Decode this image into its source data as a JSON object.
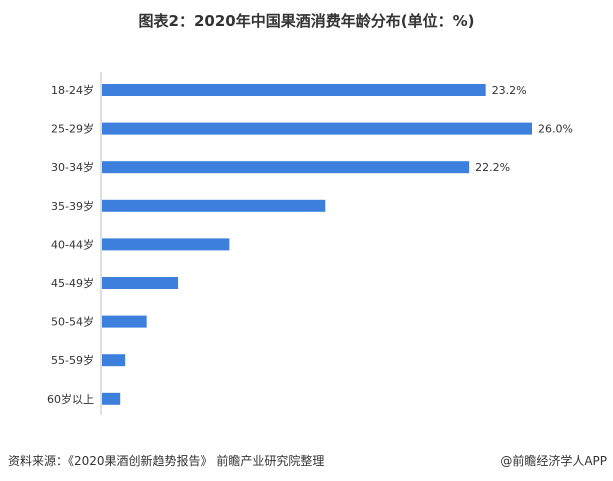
{
  "chart_data": {
    "type": "bar",
    "orientation": "horizontal",
    "title": "图表2：2020年中国果酒消费年龄分布(单位：%)",
    "categories": [
      "18-24岁",
      "25-29岁",
      "30-34岁",
      "35-39岁",
      "40-44岁",
      "45-49岁",
      "50-54岁",
      "55-59岁",
      "60岁以上"
    ],
    "values": [
      23.2,
      26.0,
      22.2,
      13.5,
      7.7,
      4.6,
      2.7,
      1.4,
      1.1
    ],
    "data_labels": [
      "23.2%",
      "26.0%",
      "22.2%",
      "",
      "",
      "",
      "",
      "",
      ""
    ],
    "xlim": [
      0,
      26.0
    ],
    "bar_color": "#3c7fdd",
    "grid": false,
    "legend": "none"
  },
  "footer": {
    "source": "资料来源：《2020果酒创新趋势报告》 前瞻产业研究院整理",
    "credit": "@前瞻经济学人APP"
  }
}
